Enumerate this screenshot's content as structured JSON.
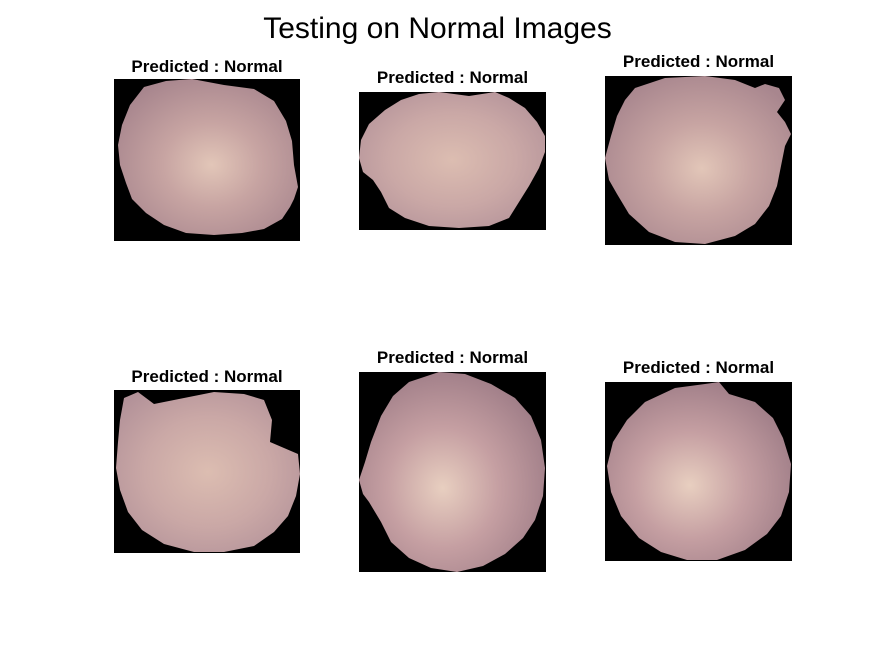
{
  "figure": {
    "title": "Testing on Normal Images"
  },
  "panels": [
    {
      "label": "Predicted : Normal",
      "image": "red-blood-cell-image"
    },
    {
      "label": "Predicted : Normal",
      "image": "red-blood-cell-image"
    },
    {
      "label": "Predicted : Normal",
      "image": "red-blood-cell-image"
    },
    {
      "label": "Predicted : Normal",
      "image": "red-blood-cell-image"
    },
    {
      "label": "Predicted : Normal",
      "image": "red-blood-cell-image"
    },
    {
      "label": "Predicted : Normal",
      "image": "red-blood-cell-image"
    }
  ],
  "colors": {
    "background": "#000000",
    "cell_base": "#b89296",
    "cell_center": "#e3c8b8",
    "cell_edge": "#9b7a82"
  }
}
